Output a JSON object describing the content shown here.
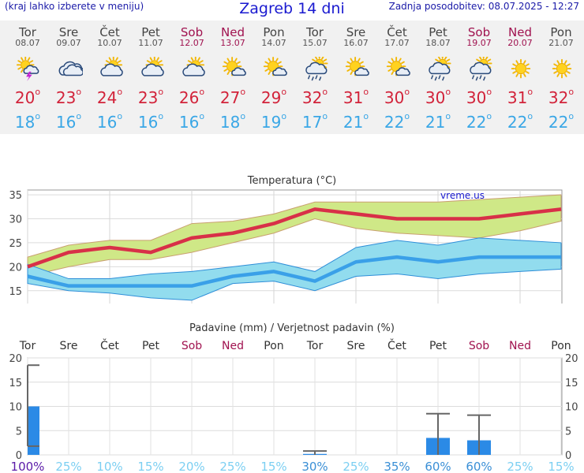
{
  "header": {
    "left": "(kraj lahko izberete v meniju)",
    "title": "Zagreb 14 dni",
    "updated": "Zadnja posodobitev: 08.07.2025 - 12:27"
  },
  "degree_symbol": "o",
  "days": [
    {
      "name": "Tor",
      "date": "08.07",
      "weekend": false,
      "icon": "sun-cloud-thunder-icon",
      "max": "20",
      "min": "18"
    },
    {
      "name": "Sre",
      "date": "09.07",
      "weekend": false,
      "icon": "cloud-icon",
      "max": "23",
      "min": "16"
    },
    {
      "name": "Čet",
      "date": "10.07",
      "weekend": false,
      "icon": "sun-cloud-icon",
      "max": "24",
      "min": "16"
    },
    {
      "name": "Pet",
      "date": "11.07",
      "weekend": false,
      "icon": "sun-cloud-icon",
      "max": "23",
      "min": "16"
    },
    {
      "name": "Sob",
      "date": "12.07",
      "weekend": true,
      "icon": "sun-cloud-icon",
      "max": "26",
      "min": "16"
    },
    {
      "name": "Ned",
      "date": "13.07",
      "weekend": true,
      "icon": "sun-small-cloud-icon",
      "max": "27",
      "min": "18"
    },
    {
      "name": "Pon",
      "date": "14.07",
      "weekend": false,
      "icon": "sun-small-cloud-icon",
      "max": "29",
      "min": "19"
    },
    {
      "name": "Tor",
      "date": "15.07",
      "weekend": false,
      "icon": "sun-cloud-rain-icon",
      "max": "32",
      "min": "17"
    },
    {
      "name": "Sre",
      "date": "16.07",
      "weekend": false,
      "icon": "sun-small-cloud-icon",
      "max": "31",
      "min": "21"
    },
    {
      "name": "Čet",
      "date": "17.07",
      "weekend": false,
      "icon": "sun-small-cloud-icon",
      "max": "30",
      "min": "22"
    },
    {
      "name": "Pet",
      "date": "18.07",
      "weekend": false,
      "icon": "sun-cloud-rain-icon",
      "max": "30",
      "min": "21"
    },
    {
      "name": "Sob",
      "date": "19.07",
      "weekend": true,
      "icon": "sun-cloud-rain-icon",
      "max": "30",
      "min": "22"
    },
    {
      "name": "Ned",
      "date": "20.07",
      "weekend": true,
      "icon": "sun-icon",
      "max": "31",
      "min": "22"
    },
    {
      "name": "Pon",
      "date": "21.07",
      "weekend": false,
      "icon": "sun-icon",
      "max": "32",
      "min": "22"
    }
  ],
  "colors": {
    "max": "#d2233a",
    "min": "#3aa7e6",
    "weekend": "#a0124f",
    "precip_bar": "#2b8ae6",
    "range_max_fill": "#cfe887",
    "range_min_fill": "#92dcee",
    "prob_high": "#5a1aa8",
    "prob_mid": "#3a8fd6",
    "prob_low": "#7ccff2"
  },
  "chart_data": [
    {
      "type": "line",
      "title": "Temperatura (°C)",
      "watermark": "vreme.us",
      "ylim": [
        12,
        36
      ],
      "yticks": [
        15,
        20,
        25,
        30,
        35
      ],
      "grid": true,
      "series": [
        {
          "values": [
            20,
            23,
            24,
            23,
            26,
            27,
            29,
            32,
            31,
            30,
            30,
            30,
            31,
            32
          ]
        },
        {
          "values": [
            22,
            24.5,
            25.5,
            25.5,
            29,
            29.5,
            31,
            33.5,
            33.5,
            33.5,
            33.5,
            34,
            34.5,
            35
          ]
        },
        {
          "values": [
            18,
            20,
            21.5,
            21.5,
            23,
            25,
            27,
            30,
            28,
            27,
            26.5,
            26,
            27.5,
            29.5
          ]
        },
        {
          "values": [
            18,
            16,
            16,
            16,
            16,
            18,
            19,
            17,
            21,
            22,
            21,
            22,
            22,
            22
          ]
        },
        {
          "values": [
            20.5,
            17.5,
            17.5,
            18.5,
            19,
            20,
            21,
            19,
            24,
            25.5,
            24.5,
            26,
            25.5,
            25
          ]
        },
        {
          "values": [
            16.5,
            15,
            14.5,
            13.5,
            13,
            16.5,
            17,
            15,
            18,
            18.5,
            17.5,
            18.5,
            19,
            19.5
          ]
        }
      ]
    },
    {
      "type": "bar",
      "title": "Padavine (mm) / Verjetnost padavin (%)",
      "categories": [
        "Tor",
        "Sre",
        "Čet",
        "Pet",
        "Sob",
        "Ned",
        "Pon",
        "Tor",
        "Sre",
        "Čet",
        "Pet",
        "Sob",
        "Ned",
        "Pon"
      ],
      "ylim": [
        0,
        20
      ],
      "yticks": [
        0,
        5,
        10,
        15,
        20
      ],
      "grid": true,
      "values": [
        10,
        0,
        0,
        0,
        0,
        0,
        0,
        0.2,
        0,
        0,
        3.5,
        3,
        0,
        0
      ],
      "error_high": [
        18.5,
        0,
        0,
        0,
        0,
        0,
        0,
        0.8,
        0,
        0,
        8.5,
        8.2,
        0,
        0
      ],
      "error_low": [
        1.8,
        0,
        0,
        0,
        0,
        0,
        0,
        0,
        0,
        0,
        0,
        0,
        0,
        0
      ],
      "probability": [
        "100%",
        "25%",
        "10%",
        "15%",
        "20%",
        "25%",
        "15%",
        "30%",
        "25%",
        "35%",
        "60%",
        "60%",
        "25%",
        "15%"
      ]
    }
  ]
}
